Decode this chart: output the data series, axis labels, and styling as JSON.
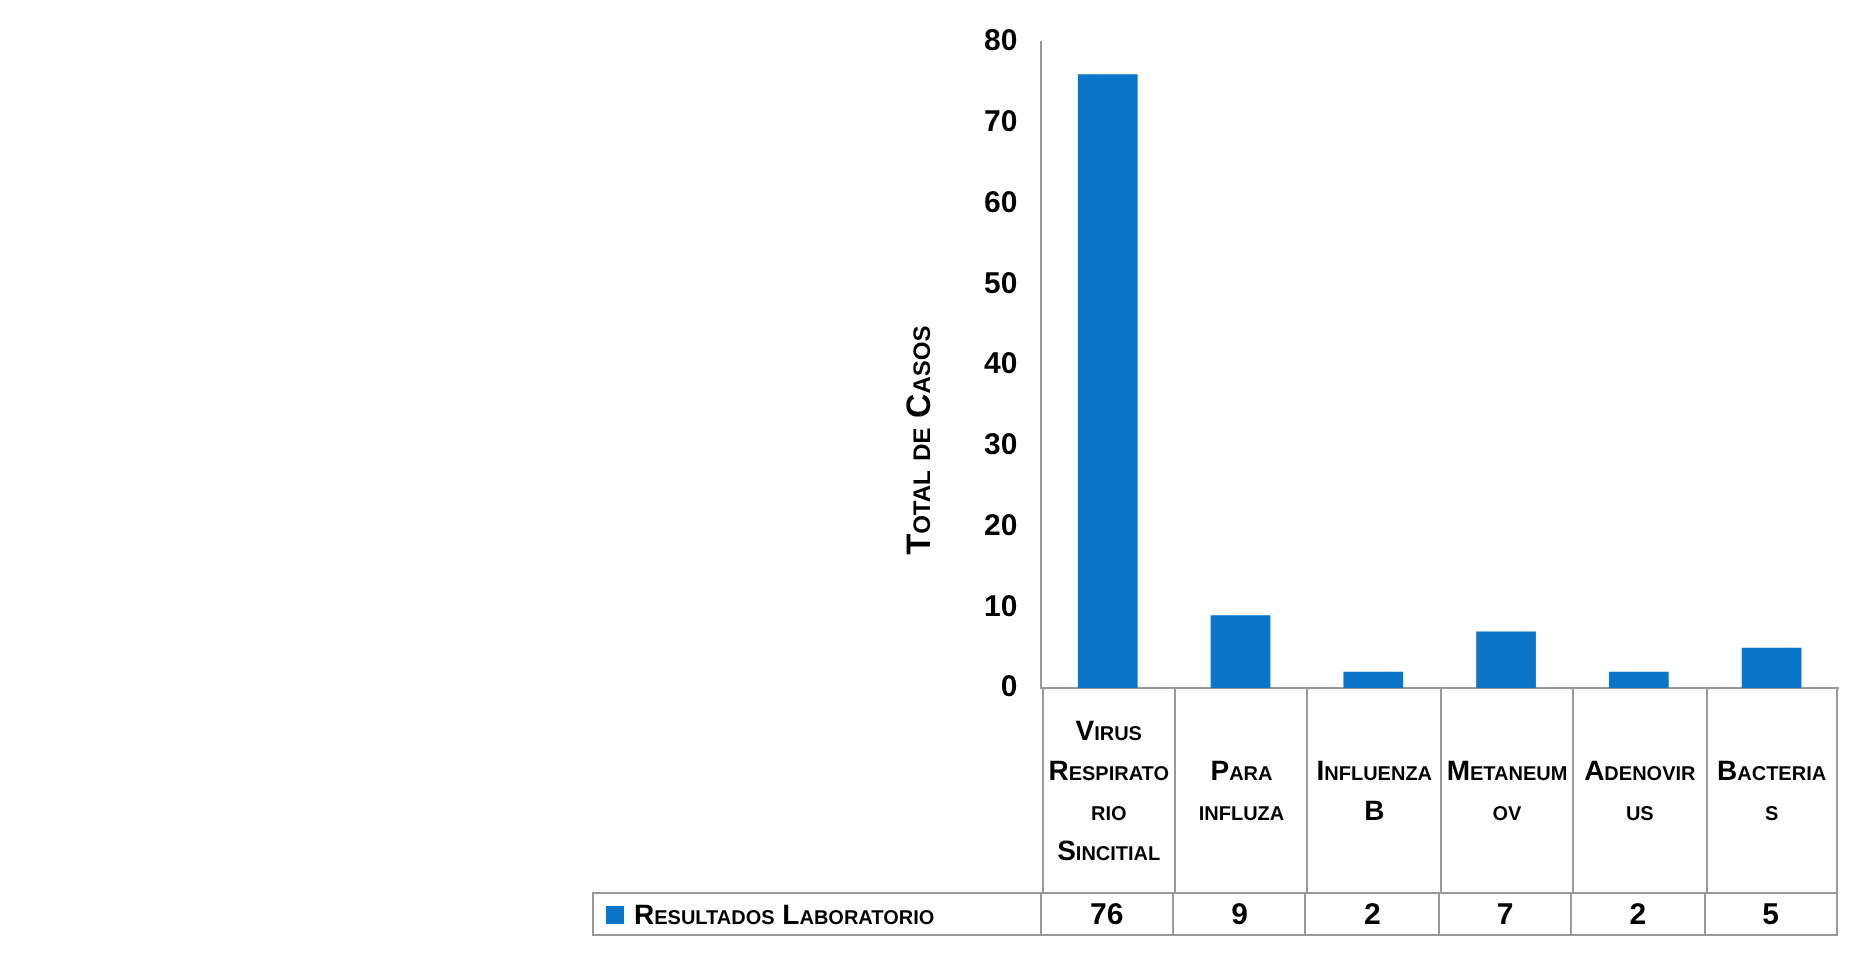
{
  "chart_data": {
    "type": "bar",
    "ylabel": "Total de Casos",
    "categories": [
      "Virus Respiratorio Sincitial",
      "Para influza",
      "Influenza B",
      "Metaneumov",
      "Adenovirus",
      "Bacterias"
    ],
    "series": [
      {
        "name": "Resultados Laboratorio",
        "color": "#0a75c9",
        "values": [
          76,
          9,
          2,
          7,
          2,
          5
        ]
      }
    ],
    "ylim": [
      0,
      80
    ],
    "yticks": [
      0,
      10,
      20,
      30,
      40,
      50,
      60,
      70,
      80
    ],
    "grid": false,
    "legend": "bottom",
    "data_labels": true
  }
}
